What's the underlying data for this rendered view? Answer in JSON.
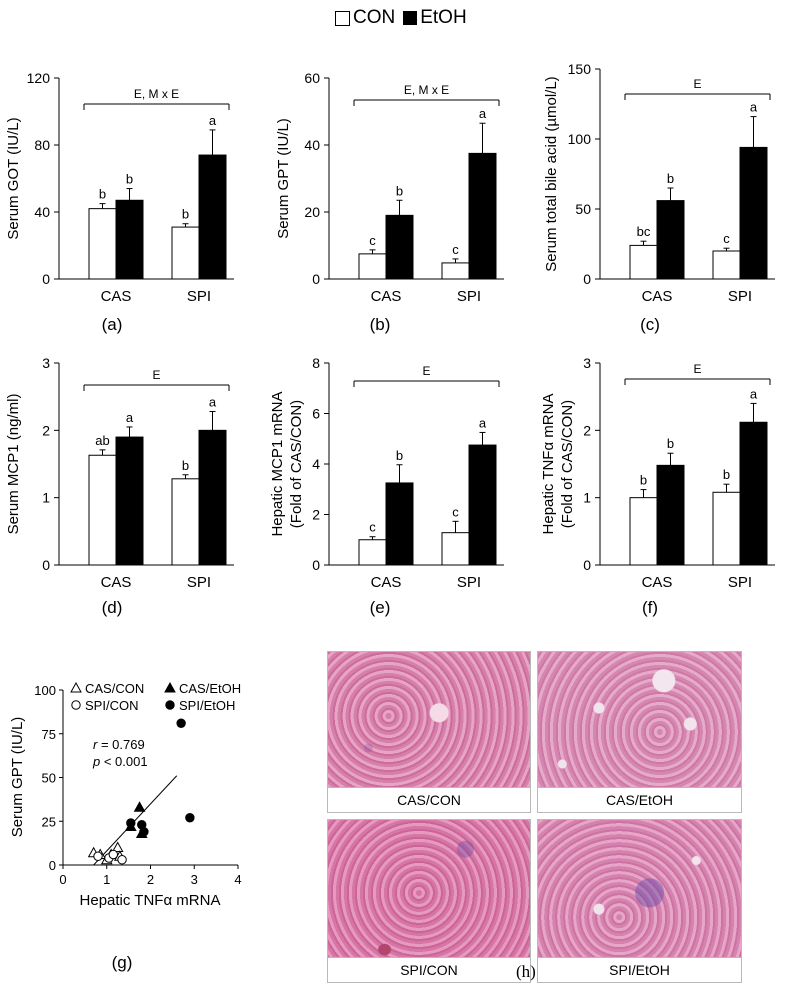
{
  "legend": {
    "con_label": "CON",
    "etoh_label": "EtOH"
  },
  "categories": [
    "CAS",
    "SPI"
  ],
  "panels": [
    {
      "letter": "(a)",
      "ylabel": [
        "Serum GOT (IU/L)"
      ],
      "ymax": 120,
      "yticks": [
        0,
        40,
        80,
        120
      ],
      "sig": "E, M x E",
      "con": [
        42,
        31
      ],
      "etoh": [
        47,
        74
      ],
      "con_err": [
        3,
        2
      ],
      "etoh_err": [
        7,
        15
      ],
      "labels_con": [
        "b",
        "b"
      ],
      "labels_etoh": [
        "b",
        "a"
      ]
    },
    {
      "letter": "(b)",
      "ylabel": [
        "Serum GPT (IU/L)"
      ],
      "ymax": 60,
      "yticks": [
        0,
        20,
        40,
        60
      ],
      "sig": "E, M x E",
      "con": [
        7.5,
        4.8
      ],
      "etoh": [
        19,
        37.5
      ],
      "con_err": [
        1.2,
        1.2
      ],
      "etoh_err": [
        4.5,
        9
      ],
      "labels_con": [
        "c",
        "c"
      ],
      "labels_etoh": [
        "b",
        "a"
      ]
    },
    {
      "letter": "(c)",
      "ylabel": [
        "Serum total bile acid (µmol/L)"
      ],
      "ymax": 150,
      "yticks": [
        0,
        50,
        100,
        150
      ],
      "sig": "E",
      "con": [
        24,
        20
      ],
      "etoh": [
        56,
        94
      ],
      "con_err": [
        3,
        2
      ],
      "etoh_err": [
        9,
        22
      ],
      "labels_con": [
        "bc",
        "c"
      ],
      "labels_etoh": [
        "b",
        "a"
      ]
    },
    {
      "letter": "(d)",
      "ylabel": [
        "Serum MCP1 (ng/ml)"
      ],
      "ymax": 3,
      "yticks": [
        0,
        1,
        2,
        3
      ],
      "sig": "E",
      "con": [
        1.63,
        1.28
      ],
      "etoh": [
        1.9,
        2.0
      ],
      "con_err": [
        0.08,
        0.06
      ],
      "etoh_err": [
        0.15,
        0.28
      ],
      "labels_con": [
        "ab",
        "b"
      ],
      "labels_etoh": [
        "a",
        "a"
      ]
    },
    {
      "letter": "(e)",
      "ylabel": [
        "Hepatic MCP1 mRNA",
        "(Fold of CAS/CON)"
      ],
      "ymax": 8,
      "yticks": [
        0,
        2,
        4,
        6,
        8
      ],
      "sig": "E",
      "con": [
        1.0,
        1.28
      ],
      "etoh": [
        3.25,
        4.75
      ],
      "con_err": [
        0.12,
        0.45
      ],
      "etoh_err": [
        0.72,
        0.5
      ],
      "labels_con": [
        "c",
        "c"
      ],
      "labels_etoh": [
        "b",
        "a"
      ]
    },
    {
      "letter": "(f)",
      "ylabel": [
        "Hepatic TNFα mRNA",
        "(Fold of CAS/CON)"
      ],
      "ymax": 3,
      "yticks": [
        0,
        1,
        2,
        3
      ],
      "sig": "E",
      "con": [
        1.0,
        1.08
      ],
      "etoh": [
        1.48,
        2.12
      ],
      "con_err": [
        0.12,
        0.12
      ],
      "etoh_err": [
        0.18,
        0.28
      ],
      "labels_con": [
        "b",
        "b"
      ],
      "labels_etoh": [
        "b",
        "a"
      ]
    }
  ],
  "chart_data": [
    {
      "type": "bar",
      "panel": "(a)",
      "categories": [
        "CAS",
        "SPI"
      ],
      "ylabel": "Serum GOT (IU/L)",
      "ylim": [
        0,
        120
      ],
      "series": [
        {
          "name": "CON",
          "values": [
            42,
            31
          ]
        },
        {
          "name": "EtOH",
          "values": [
            47,
            74
          ]
        }
      ]
    },
    {
      "type": "bar",
      "panel": "(b)",
      "categories": [
        "CAS",
        "SPI"
      ],
      "ylabel": "Serum GPT (IU/L)",
      "ylim": [
        0,
        60
      ],
      "series": [
        {
          "name": "CON",
          "values": [
            7.5,
            4.8
          ]
        },
        {
          "name": "EtOH",
          "values": [
            19,
            37.5
          ]
        }
      ]
    },
    {
      "type": "bar",
      "panel": "(c)",
      "categories": [
        "CAS",
        "SPI"
      ],
      "ylabel": "Serum total bile acid (µmol/L)",
      "ylim": [
        0,
        150
      ],
      "series": [
        {
          "name": "CON",
          "values": [
            24,
            20
          ]
        },
        {
          "name": "EtOH",
          "values": [
            56,
            94
          ]
        }
      ]
    },
    {
      "type": "bar",
      "panel": "(d)",
      "categories": [
        "CAS",
        "SPI"
      ],
      "ylabel": "Serum MCP1 (ng/ml)",
      "ylim": [
        0,
        3
      ],
      "series": [
        {
          "name": "CON",
          "values": [
            1.63,
            1.28
          ]
        },
        {
          "name": "EtOH",
          "values": [
            1.9,
            2.0
          ]
        }
      ]
    },
    {
      "type": "bar",
      "panel": "(e)",
      "categories": [
        "CAS",
        "SPI"
      ],
      "ylabel": "Hepatic MCP1 mRNA (Fold of CAS/CON)",
      "ylim": [
        0,
        8
      ],
      "series": [
        {
          "name": "CON",
          "values": [
            1.0,
            1.28
          ]
        },
        {
          "name": "EtOH",
          "values": [
            3.25,
            4.75
          ]
        }
      ]
    },
    {
      "type": "bar",
      "panel": "(f)",
      "categories": [
        "CAS",
        "SPI"
      ],
      "ylabel": "Hepatic TNFα mRNA (Fold of CAS/CON)",
      "ylim": [
        0,
        3
      ],
      "series": [
        {
          "name": "CON",
          "values": [
            1.0,
            1.08
          ]
        },
        {
          "name": "EtOH",
          "values": [
            1.48,
            2.12
          ]
        }
      ]
    },
    {
      "type": "scatter",
      "panel": "(g)",
      "xlabel": "Hepatic TNFα mRNA",
      "ylabel": "Serum GPT (IU/L)",
      "xlim": [
        0,
        4
      ],
      "ylim": [
        0,
        100
      ],
      "series": [
        {
          "name": "CAS/CON",
          "points": [
            [
              0.7,
              7
            ],
            [
              0.85,
              6
            ],
            [
              1.0,
              3
            ],
            [
              1.1,
              6
            ],
            [
              1.25,
              10
            ],
            [
              1.3,
              5
            ]
          ]
        },
        {
          "name": "CAS/EtOH",
          "points": [
            [
              1.55,
              22
            ],
            [
              1.75,
              33
            ],
            [
              1.8,
              18
            ]
          ]
        },
        {
          "name": "SPI/CON",
          "points": [
            [
              0.8,
              5
            ],
            [
              1.05,
              4
            ],
            [
              1.15,
              6
            ],
            [
              1.35,
              3
            ]
          ]
        },
        {
          "name": "SPI/EtOH",
          "points": [
            [
              1.55,
              24
            ],
            [
              1.8,
              23
            ],
            [
              1.85,
              19
            ],
            [
              2.7,
              81
            ],
            [
              2.9,
              27
            ]
          ]
        }
      ],
      "regression": [
        [
          0.7,
          0
        ],
        [
          2.6,
          51
        ]
      ]
    }
  ],
  "scatter": {
    "letter": "(g)",
    "xlabel": "Hepatic TNFα mRNA",
    "ylabel": "Serum GPT (IU/L)",
    "xticks": [
      0,
      1,
      2,
      3,
      4
    ],
    "yticks": [
      0,
      25,
      50,
      75,
      100
    ],
    "legend": [
      "CAS/CON",
      "CAS/EtOH",
      "SPI/CON",
      "SPI/EtOH"
    ],
    "r_label": "r",
    "r_value": " = 0.769",
    "p_label": "p",
    "p_value": " < 0.001"
  },
  "histology": {
    "letter": "(h)",
    "captions": [
      "CAS/CON",
      "CAS/EtOH",
      "SPI/CON",
      "SPI/EtOH"
    ]
  }
}
